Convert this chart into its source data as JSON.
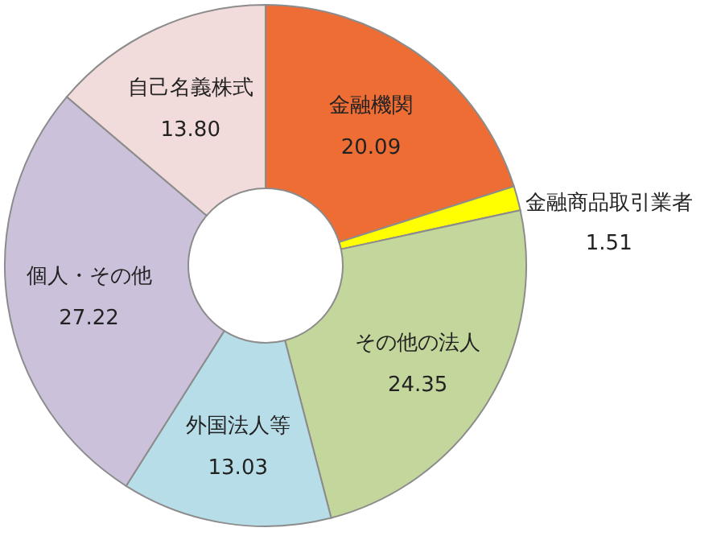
{
  "chart_data": {
    "type": "donut",
    "categories": [
      "金融機関",
      "金融商品取引業者",
      "その他の法人",
      "外国法人等",
      "個人・その他",
      "自己名義株式"
    ],
    "values": [
      20.09,
      1.51,
      24.35,
      13.03,
      27.22,
      13.8
    ],
    "colors": [
      "#ed6d35",
      "#ffff00",
      "#c3d69b",
      "#b7dee8",
      "#ccc1da",
      "#f2dcdb"
    ],
    "value_labels": [
      "20.09",
      "1.51",
      "24.35",
      "13.03",
      "27.22",
      "13.80"
    ]
  }
}
